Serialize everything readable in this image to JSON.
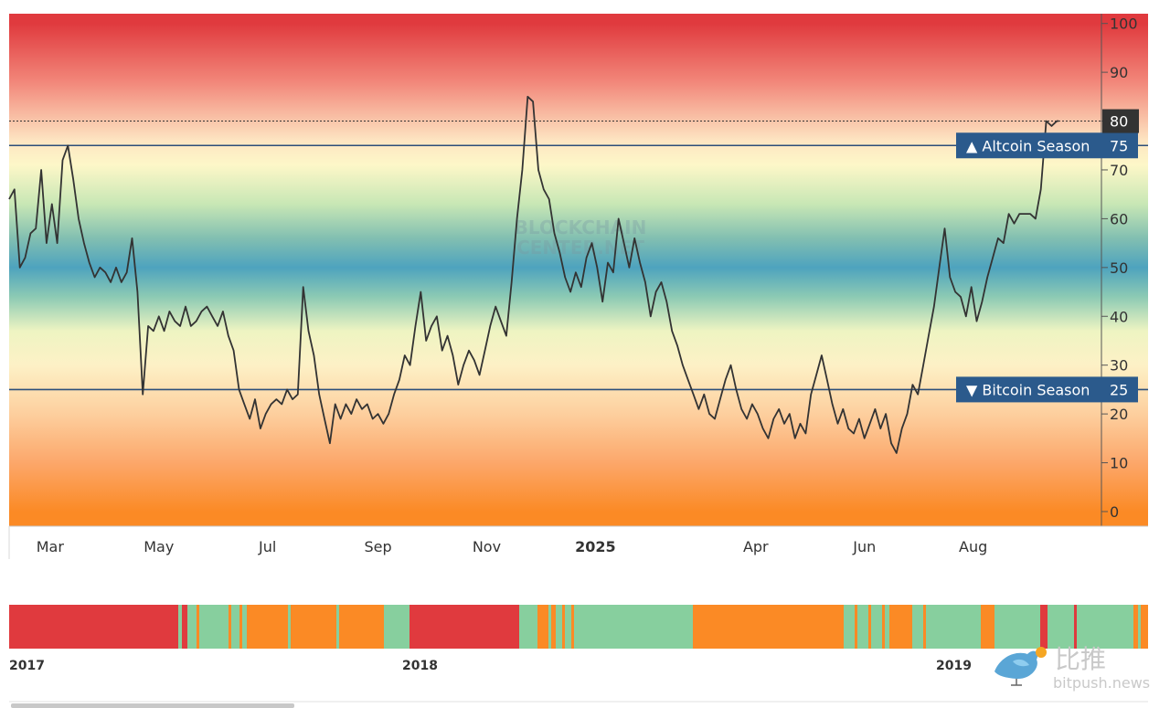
{
  "chart_data": {
    "type": "line",
    "title": "",
    "xlabel": "",
    "ylabel": "",
    "watermark": "BLOCKCHAIN CENTER.NET",
    "ylim": [
      -3,
      102
    ],
    "y_ticks": [
      0,
      10,
      20,
      30,
      40,
      50,
      60,
      70,
      80,
      90,
      100
    ],
    "x_range": [
      "2024-02-07",
      "2025-10-12"
    ],
    "x_ticks": [
      {
        "label": "Mar",
        "date": "2024-03-01",
        "bold": false
      },
      {
        "label": "May",
        "date": "2024-05-01",
        "bold": false
      },
      {
        "label": "Jul",
        "date": "2024-07-01",
        "bold": false
      },
      {
        "label": "Sep",
        "date": "2024-09-01",
        "bold": false
      },
      {
        "label": "Nov",
        "date": "2024-11-01",
        "bold": false
      },
      {
        "label": "2025",
        "date": "2025-01-01",
        "bold": true
      },
      {
        "label": "Apr",
        "date": "2025-04-01",
        "bold": false
      },
      {
        "label": "Jun",
        "date": "2025-06-01",
        "bold": false
      },
      {
        "label": "Aug",
        "date": "2025-08-01",
        "bold": false
      }
    ],
    "thresholds": [
      {
        "name": "Altcoin Season",
        "value": 75,
        "marker": "▲",
        "value_label": "75"
      },
      {
        "name": "Bitcoin Season",
        "value": 25,
        "marker": "▼",
        "value_label": "25"
      }
    ],
    "current_value": {
      "value": 80,
      "label": "80"
    },
    "background_gradient": [
      {
        "value": 100,
        "color": "#e03a3e"
      },
      {
        "value": 88,
        "color": "#f2877a"
      },
      {
        "value": 76,
        "color": "#fde5c2"
      },
      {
        "value": 71,
        "color": "#fdf7c8"
      },
      {
        "value": 63,
        "color": "#c8e7b5"
      },
      {
        "value": 56,
        "color": "#82bfb1"
      },
      {
        "value": 50,
        "color": "#4ea3be"
      },
      {
        "value": 44,
        "color": "#8ccab4"
      },
      {
        "value": 37,
        "color": "#eef4c2"
      },
      {
        "value": 30,
        "color": "#fdf1c6"
      },
      {
        "value": 20,
        "color": "#fdcf9e"
      },
      {
        "value": 10,
        "color": "#fca76a"
      },
      {
        "value": 0,
        "color": "#fb8a25"
      }
    ],
    "series": [
      {
        "name": "",
        "color": "#333333",
        "points": [
          [
            "2024-02-07",
            64
          ],
          [
            "2024-02-10",
            66
          ],
          [
            "2024-02-13",
            50
          ],
          [
            "2024-02-16",
            52
          ],
          [
            "2024-02-19",
            57
          ],
          [
            "2024-02-22",
            58
          ],
          [
            "2024-02-25",
            70
          ],
          [
            "2024-02-28",
            55
          ],
          [
            "2024-03-02",
            63
          ],
          [
            "2024-03-05",
            55
          ],
          [
            "2024-03-08",
            72
          ],
          [
            "2024-03-11",
            75
          ],
          [
            "2024-03-14",
            68
          ],
          [
            "2024-03-17",
            60
          ],
          [
            "2024-03-20",
            55
          ],
          [
            "2024-03-23",
            51
          ],
          [
            "2024-03-26",
            48
          ],
          [
            "2024-03-29",
            50
          ],
          [
            "2024-04-01",
            49
          ],
          [
            "2024-04-04",
            47
          ],
          [
            "2024-04-07",
            50
          ],
          [
            "2024-04-10",
            47
          ],
          [
            "2024-04-13",
            49
          ],
          [
            "2024-04-16",
            56
          ],
          [
            "2024-04-19",
            45
          ],
          [
            "2024-04-22",
            24
          ],
          [
            "2024-04-25",
            38
          ],
          [
            "2024-04-28",
            37
          ],
          [
            "2024-05-01",
            40
          ],
          [
            "2024-05-04",
            37
          ],
          [
            "2024-05-07",
            41
          ],
          [
            "2024-05-10",
            39
          ],
          [
            "2024-05-13",
            38
          ],
          [
            "2024-05-16",
            42
          ],
          [
            "2024-05-19",
            38
          ],
          [
            "2024-05-22",
            39
          ],
          [
            "2024-05-25",
            41
          ],
          [
            "2024-05-28",
            42
          ],
          [
            "2024-05-31",
            40
          ],
          [
            "2024-06-03",
            38
          ],
          [
            "2024-06-06",
            41
          ],
          [
            "2024-06-09",
            36
          ],
          [
            "2024-06-12",
            33
          ],
          [
            "2024-06-15",
            25
          ],
          [
            "2024-06-18",
            22
          ],
          [
            "2024-06-21",
            19
          ],
          [
            "2024-06-24",
            23
          ],
          [
            "2024-06-27",
            17
          ],
          [
            "2024-06-30",
            20
          ],
          [
            "2024-07-03",
            22
          ],
          [
            "2024-07-06",
            23
          ],
          [
            "2024-07-09",
            22
          ],
          [
            "2024-07-12",
            25
          ],
          [
            "2024-07-15",
            23
          ],
          [
            "2024-07-18",
            24
          ],
          [
            "2024-07-21",
            46
          ],
          [
            "2024-07-24",
            37
          ],
          [
            "2024-07-27",
            32
          ],
          [
            "2024-07-30",
            24
          ],
          [
            "2024-08-02",
            19
          ],
          [
            "2024-08-05",
            14
          ],
          [
            "2024-08-08",
            22
          ],
          [
            "2024-08-11",
            19
          ],
          [
            "2024-08-14",
            22
          ],
          [
            "2024-08-17",
            20
          ],
          [
            "2024-08-20",
            23
          ],
          [
            "2024-08-23",
            21
          ],
          [
            "2024-08-26",
            22
          ],
          [
            "2024-08-29",
            19
          ],
          [
            "2024-09-01",
            20
          ],
          [
            "2024-09-04",
            18
          ],
          [
            "2024-09-07",
            20
          ],
          [
            "2024-09-10",
            24
          ],
          [
            "2024-09-13",
            27
          ],
          [
            "2024-09-16",
            32
          ],
          [
            "2024-09-19",
            30
          ],
          [
            "2024-09-22",
            38
          ],
          [
            "2024-09-25",
            45
          ],
          [
            "2024-09-28",
            35
          ],
          [
            "2024-10-01",
            38
          ],
          [
            "2024-10-04",
            40
          ],
          [
            "2024-10-07",
            33
          ],
          [
            "2024-10-10",
            36
          ],
          [
            "2024-10-13",
            32
          ],
          [
            "2024-10-16",
            26
          ],
          [
            "2024-10-19",
            30
          ],
          [
            "2024-10-22",
            33
          ],
          [
            "2024-10-25",
            31
          ],
          [
            "2024-10-28",
            28
          ],
          [
            "2024-10-31",
            33
          ],
          [
            "2024-11-03",
            38
          ],
          [
            "2024-11-06",
            42
          ],
          [
            "2024-11-09",
            39
          ],
          [
            "2024-11-12",
            36
          ],
          [
            "2024-11-15",
            47
          ],
          [
            "2024-11-18",
            60
          ],
          [
            "2024-11-21",
            70
          ],
          [
            "2024-11-24",
            85
          ],
          [
            "2024-11-27",
            84
          ],
          [
            "2024-11-30",
            70
          ],
          [
            "2024-12-03",
            66
          ],
          [
            "2024-12-06",
            64
          ],
          [
            "2024-12-09",
            57
          ],
          [
            "2024-12-12",
            53
          ],
          [
            "2024-12-15",
            48
          ],
          [
            "2024-12-18",
            45
          ],
          [
            "2024-12-21",
            49
          ],
          [
            "2024-12-24",
            46
          ],
          [
            "2024-12-27",
            52
          ],
          [
            "2024-12-30",
            55
          ],
          [
            "2025-01-02",
            50
          ],
          [
            "2025-01-05",
            43
          ],
          [
            "2025-01-08",
            51
          ],
          [
            "2025-01-11",
            49
          ],
          [
            "2025-01-14",
            60
          ],
          [
            "2025-01-17",
            55
          ],
          [
            "2025-01-20",
            50
          ],
          [
            "2025-01-23",
            56
          ],
          [
            "2025-01-26",
            51
          ],
          [
            "2025-01-29",
            47
          ],
          [
            "2025-02-01",
            40
          ],
          [
            "2025-02-04",
            45
          ],
          [
            "2025-02-07",
            47
          ],
          [
            "2025-02-10",
            43
          ],
          [
            "2025-02-13",
            37
          ],
          [
            "2025-02-16",
            34
          ],
          [
            "2025-02-19",
            30
          ],
          [
            "2025-02-22",
            27
          ],
          [
            "2025-02-25",
            24
          ],
          [
            "2025-02-28",
            21
          ],
          [
            "2025-03-03",
            24
          ],
          [
            "2025-03-06",
            20
          ],
          [
            "2025-03-09",
            19
          ],
          [
            "2025-03-12",
            23
          ],
          [
            "2025-03-15",
            27
          ],
          [
            "2025-03-18",
            30
          ],
          [
            "2025-03-21",
            25
          ],
          [
            "2025-03-24",
            21
          ],
          [
            "2025-03-27",
            19
          ],
          [
            "2025-03-30",
            22
          ],
          [
            "2025-04-02",
            20
          ],
          [
            "2025-04-05",
            17
          ],
          [
            "2025-04-08",
            15
          ],
          [
            "2025-04-11",
            19
          ],
          [
            "2025-04-14",
            21
          ],
          [
            "2025-04-17",
            18
          ],
          [
            "2025-04-20",
            20
          ],
          [
            "2025-04-23",
            15
          ],
          [
            "2025-04-26",
            18
          ],
          [
            "2025-04-29",
            16
          ],
          [
            "2025-05-02",
            24
          ],
          [
            "2025-05-05",
            28
          ],
          [
            "2025-05-08",
            32
          ],
          [
            "2025-05-11",
            27
          ],
          [
            "2025-05-14",
            22
          ],
          [
            "2025-05-17",
            18
          ],
          [
            "2025-05-20",
            21
          ],
          [
            "2025-05-23",
            17
          ],
          [
            "2025-05-26",
            16
          ],
          [
            "2025-05-29",
            19
          ],
          [
            "2025-06-01",
            15
          ],
          [
            "2025-06-04",
            18
          ],
          [
            "2025-06-07",
            21
          ],
          [
            "2025-06-10",
            17
          ],
          [
            "2025-06-13",
            20
          ],
          [
            "2025-06-16",
            14
          ],
          [
            "2025-06-19",
            12
          ],
          [
            "2025-06-22",
            17
          ],
          [
            "2025-06-25",
            20
          ],
          [
            "2025-06-28",
            26
          ],
          [
            "2025-07-01",
            24
          ],
          [
            "2025-07-04",
            30
          ],
          [
            "2025-07-07",
            36
          ],
          [
            "2025-07-10",
            42
          ],
          [
            "2025-07-13",
            50
          ],
          [
            "2025-07-16",
            58
          ],
          [
            "2025-07-19",
            48
          ],
          [
            "2025-07-22",
            45
          ],
          [
            "2025-07-25",
            44
          ],
          [
            "2025-07-28",
            40
          ],
          [
            "2025-07-31",
            46
          ],
          [
            "2025-08-03",
            39
          ],
          [
            "2025-08-06",
            43
          ],
          [
            "2025-08-09",
            48
          ],
          [
            "2025-08-12",
            52
          ],
          [
            "2025-08-15",
            56
          ],
          [
            "2025-08-18",
            55
          ],
          [
            "2025-08-21",
            61
          ],
          [
            "2025-08-24",
            59
          ],
          [
            "2025-08-27",
            61
          ],
          [
            "2025-08-30",
            61
          ],
          [
            "2025-09-02",
            61
          ],
          [
            "2025-09-05",
            60
          ],
          [
            "2025-09-08",
            66
          ],
          [
            "2025-09-11",
            80
          ],
          [
            "2025-09-14",
            79
          ],
          [
            "2025-09-17",
            80
          ],
          [
            "2025-09-18",
            80
          ]
        ]
      }
    ],
    "navigator": {
      "labels": [
        "2017",
        "2018",
        "2019"
      ],
      "season_colors": {
        "altcoin": "#e03a3e",
        "neutral": "#87cf9e",
        "bitcoin": "#fb8a25"
      }
    }
  },
  "footer_logo": {
    "cn": "比推",
    "en": "bitpush.news"
  }
}
